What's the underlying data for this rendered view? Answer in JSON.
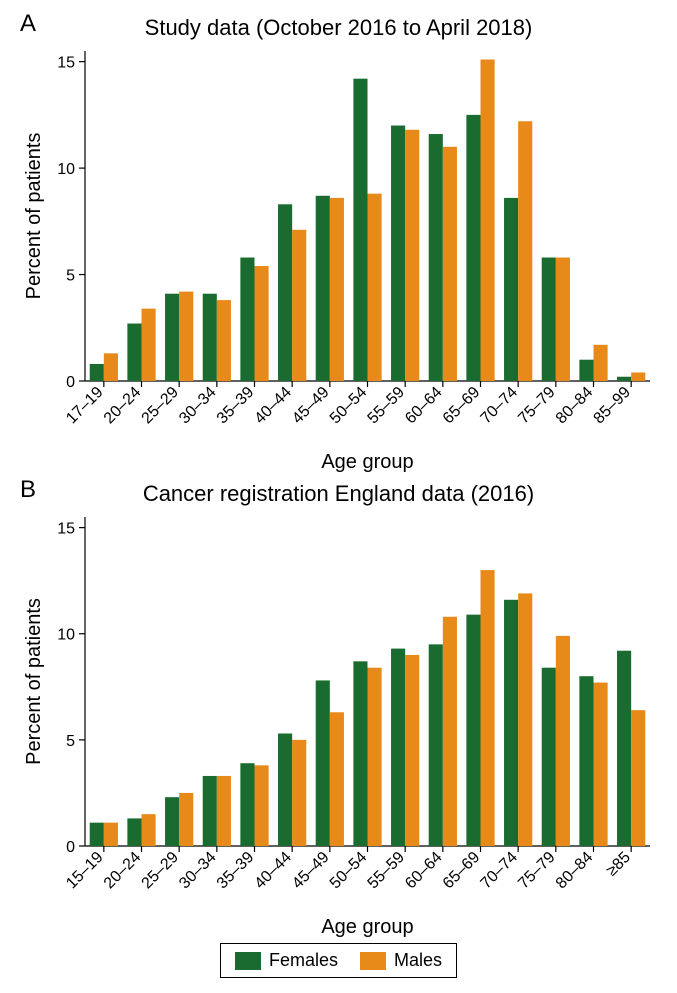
{
  "colors": {
    "females": "#1a6b2f",
    "males": "#e88a1a",
    "axis": "#000000",
    "background": "#ffffff"
  },
  "legend": {
    "females_label": "Females",
    "males_label": "Males"
  },
  "axis_font_size_pt": 16,
  "label_font_size_pt": 20,
  "title_font_size_pt": 22,
  "panels": [
    {
      "id": "A",
      "title": "Study data (October 2016 to April 2018)",
      "xlabel": "Age group",
      "ylabel": "Percent of patients",
      "ylim": [
        0,
        15.5
      ],
      "yticks": [
        0,
        5,
        10,
        15
      ],
      "categories": [
        "17–19",
        "20–24",
        "25–29",
        "30–34",
        "35–39",
        "40–44",
        "45–49",
        "50–54",
        "55–59",
        "60–64",
        "65–69",
        "70–74",
        "75–79",
        "80–84",
        "85–99"
      ],
      "series": {
        "females": [
          0.8,
          2.7,
          4.1,
          4.1,
          5.8,
          8.3,
          8.7,
          14.2,
          12.0,
          11.6,
          12.5,
          8.6,
          5.8,
          1.0,
          0.2
        ],
        "males": [
          1.3,
          3.4,
          4.2,
          3.8,
          5.4,
          7.1,
          8.6,
          8.8,
          11.8,
          11.0,
          15.1,
          12.2,
          5.8,
          1.7,
          0.4
        ]
      },
      "bar_group_width": 0.75
    },
    {
      "id": "B",
      "title": "Cancer registration England data (2016)",
      "xlabel": "Age group",
      "ylabel": "Percent of patients",
      "ylim": [
        0,
        15.5
      ],
      "yticks": [
        0,
        5,
        10,
        15
      ],
      "categories": [
        "15–19",
        "20–24",
        "25–29",
        "30–34",
        "35–39",
        "40–44",
        "45–49",
        "50–54",
        "55–59",
        "60–64",
        "65–69",
        "70–74",
        "75–79",
        "80–84",
        "≥85"
      ],
      "series": {
        "females": [
          1.1,
          1.3,
          2.3,
          3.3,
          3.9,
          5.3,
          7.8,
          8.7,
          9.3,
          9.5,
          10.9,
          11.6,
          8.4,
          8.0,
          9.2
        ],
        "males": [
          1.1,
          1.5,
          2.5,
          3.3,
          3.8,
          5.0,
          6.3,
          8.4,
          9.0,
          10.8,
          13.0,
          11.9,
          9.9,
          7.7,
          6.4
        ]
      },
      "bar_group_width": 0.75
    }
  ]
}
